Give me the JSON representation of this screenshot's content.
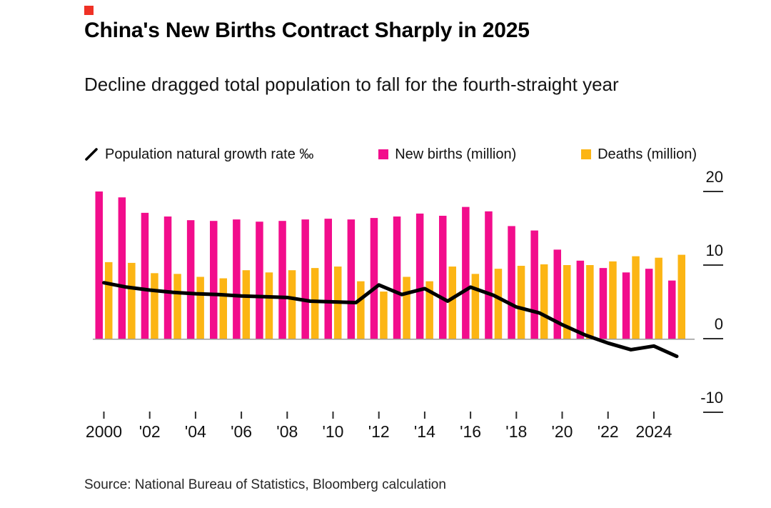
{
  "brand_mark_color": "#EF3125",
  "title": "China's New Births Contract Sharply in 2025",
  "subtitle": "Decline dragged total population to fall for the fourth-straight year",
  "source": "Source: National Bureau of Statistics, Bloomberg calculation",
  "legend": [
    {
      "label": "Population natural growth rate ‰",
      "type": "line",
      "color": "#000000"
    },
    {
      "label": "New births (million)",
      "type": "bar",
      "color": "#F20D8C"
    },
    {
      "label": "Deaths (million)",
      "type": "bar",
      "color": "#FCB514"
    }
  ],
  "chart_data": {
    "type": "bar",
    "subtype": "grouped bars with overlaid line, shared axis",
    "title": "China's New Births Contract Sharply in 2025",
    "categories": [
      2000,
      2001,
      2002,
      2003,
      2004,
      2005,
      2006,
      2007,
      2008,
      2009,
      2010,
      2011,
      2012,
      2013,
      2014,
      2015,
      2016,
      2017,
      2018,
      2019,
      2020,
      2021,
      2022,
      2023,
      2024,
      2025
    ],
    "series": [
      {
        "name": "New births (million)",
        "type": "bar",
        "color": "#F20D8C",
        "values": [
          20.0,
          19.2,
          17.1,
          16.6,
          16.1,
          16.0,
          16.2,
          15.9,
          16.0,
          16.2,
          16.3,
          16.2,
          16.4,
          16.6,
          17.0,
          16.7,
          17.9,
          17.3,
          15.3,
          14.7,
          12.1,
          10.6,
          9.6,
          9.0,
          9.5,
          7.9
        ]
      },
      {
        "name": "Deaths (million)",
        "type": "bar",
        "color": "#FCB514",
        "values": [
          10.4,
          10.3,
          8.9,
          8.8,
          8.4,
          8.2,
          9.3,
          9.0,
          9.3,
          9.6,
          9.8,
          7.8,
          6.4,
          8.4,
          7.8,
          9.8,
          8.8,
          9.5,
          9.9,
          10.1,
          10.0,
          10.0,
          10.5,
          11.2,
          11.0,
          11.4
        ]
      },
      {
        "name": "Population natural growth rate ‰",
        "type": "line",
        "color": "#000000",
        "values": [
          7.6,
          7.0,
          6.6,
          6.3,
          6.1,
          6.0,
          5.8,
          5.7,
          5.6,
          5.1,
          5.0,
          4.9,
          7.3,
          6.0,
          6.8,
          5.1,
          7.0,
          5.9,
          4.3,
          3.5,
          1.9,
          0.5,
          -0.6,
          -1.5,
          -1.0,
          -2.4
        ]
      }
    ],
    "y_axis": {
      "side": "right",
      "range": [
        -10,
        20
      ],
      "ticks": [
        20,
        10,
        0,
        -10
      ],
      "tick_labels": [
        "20",
        "10",
        "0",
        "-10"
      ]
    },
    "x_axis": {
      "tick_years": [
        2000,
        2002,
        2004,
        2006,
        2008,
        2010,
        2012,
        2014,
        2016,
        2018,
        2020,
        2022,
        2024
      ],
      "tick_labels": [
        "2000",
        "'02",
        "'04",
        "'06",
        "'08",
        "'10",
        "'12",
        "'14",
        "'16",
        "'18",
        "'20",
        "'22",
        "2024"
      ]
    },
    "grid": "zero-baseline-only",
    "legend_position": "top",
    "baseline_color": "#999999",
    "tick_color": "#2e2e2e"
  }
}
